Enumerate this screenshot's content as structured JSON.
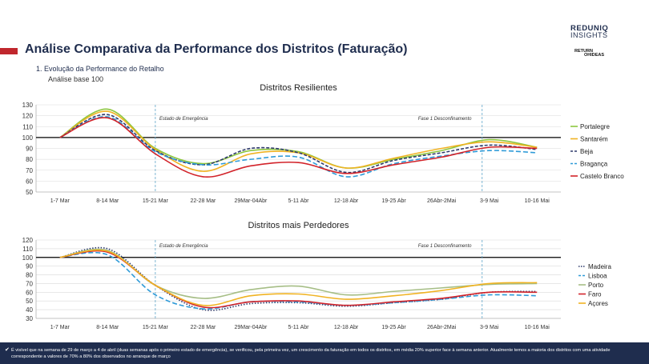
{
  "header": {
    "title": "Análise Comparativa da Performance dos Distritos (Faturação)",
    "subtitle": "1.  Evolução da Performance do Retalho",
    "note": "Análise base 100",
    "logo_line1": "REDUNIQ",
    "logo_line2": "INSIGHTS",
    "logo2_line1": "RETURN",
    "logo2_line2": "OHIDEAS"
  },
  "colors": {
    "accent": "#c0272d",
    "title": "#1f2d4e",
    "footer_bg": "#1f2d4e"
  },
  "footer": {
    "check_icon": "check-icon",
    "text": "É visível que na semana de 29 de março a 4 de abril (duas semanas após o primeiro estado de emergência), se verificou, pela primeira vez, um crescimento da faturação em todos os distritos, em média 20% superior face à semana anterior. Atualmente temos a maioria dos distritos com uma atividade correspondente a valores de 70% a 80% dos observados no arranque de março"
  },
  "chart_data": [
    {
      "type": "line",
      "title": "Distritos Resilientes",
      "categories": [
        "1-7 Mar",
        "8-14 Mar",
        "15-21 Mar",
        "22-28 Mar",
        "29Mar-04Abr",
        "5-11 Abr",
        "12-18 Abr",
        "19-25 Abr",
        "26Abr-2Mai",
        "3-9 Mai",
        "10-16 Mai"
      ],
      "yticks": [
        50,
        60,
        70,
        80,
        90,
        100,
        110,
        120,
        130
      ],
      "ylim": [
        50,
        130
      ],
      "reference_line": 100,
      "grid": true,
      "legend_position": "right",
      "annotations": [
        {
          "label": "Estado de Emergência",
          "at": 2
        },
        {
          "label": "Fase 1 Desconfinamento",
          "at": 8.85
        }
      ],
      "series": [
        {
          "name": "Portalegre",
          "color": "#8dc63f",
          "dash": "",
          "values": [
            100,
            126,
            90,
            76,
            88,
            87,
            72,
            80,
            88,
            98,
            91
          ]
        },
        {
          "name": "Santarém",
          "color": "#f0b323",
          "dash": "",
          "values": [
            100,
            124,
            89,
            69,
            85,
            86,
            72,
            81,
            90,
            96,
            91
          ]
        },
        {
          "name": "Beja",
          "color": "#2e3a6b",
          "dash": "4,2",
          "values": [
            100,
            121,
            88,
            75,
            90,
            86,
            68,
            79,
            86,
            93,
            89
          ]
        },
        {
          "name": "Bragança",
          "color": "#2f9bd8",
          "dash": "6,3",
          "values": [
            100,
            119,
            87,
            75,
            80,
            82,
            64,
            76,
            83,
            88,
            86
          ]
        },
        {
          "name": "Castelo Branco",
          "color": "#d2232a",
          "dash": "",
          "values": [
            100,
            118,
            85,
            64,
            74,
            77,
            67,
            75,
            82,
            91,
            90
          ]
        }
      ]
    },
    {
      "type": "line",
      "title": "Distritos mais Perdedores",
      "categories": [
        "1-7 Mar",
        "8-14 Mar",
        "15-21 Mar",
        "22-28 Mar",
        "29Mar-04Abr",
        "5-11 Abr",
        "12-18 Abr",
        "19-25 Abr",
        "26Abr-2Mai",
        "3-9 Mai",
        "10-16 Mai"
      ],
      "yticks": [
        30,
        40,
        50,
        60,
        70,
        80,
        90,
        100,
        110,
        120
      ],
      "ylim": [
        30,
        120
      ],
      "reference_line": 100,
      "grid": true,
      "legend_position": "right",
      "annotations": [
        {
          "label": "Estado de Emergência",
          "at": 2
        },
        {
          "label": "Fase 1 Desconfinamento",
          "at": 8.85
        }
      ],
      "series": [
        {
          "name": "Madeira",
          "color": "#2e3a6b",
          "dash": "1.5,2",
          "values": [
            100,
            110,
            68,
            40,
            47,
            48,
            44,
            48,
            52,
            60,
            61
          ]
        },
        {
          "name": "Lisboa",
          "color": "#2f9bd8",
          "dash": "6,3",
          "values": [
            100,
            103,
            57,
            41,
            49,
            49,
            45,
            48,
            52,
            57,
            56
          ]
        },
        {
          "name": "Porto",
          "color": "#a6be86",
          "dash": "",
          "values": [
            100,
            108,
            68,
            53,
            63,
            67,
            57,
            61,
            65,
            69,
            70
          ]
        },
        {
          "name": "Faro",
          "color": "#d2232a",
          "dash": "",
          "values": [
            100,
            106,
            68,
            43,
            49,
            50,
            45,
            49,
            53,
            60,
            60
          ]
        },
        {
          "name": "Açores",
          "color": "#f0b323",
          "dash": "",
          "values": [
            100,
            107,
            68,
            45,
            56,
            58,
            52,
            56,
            62,
            70,
            71
          ]
        }
      ]
    }
  ]
}
